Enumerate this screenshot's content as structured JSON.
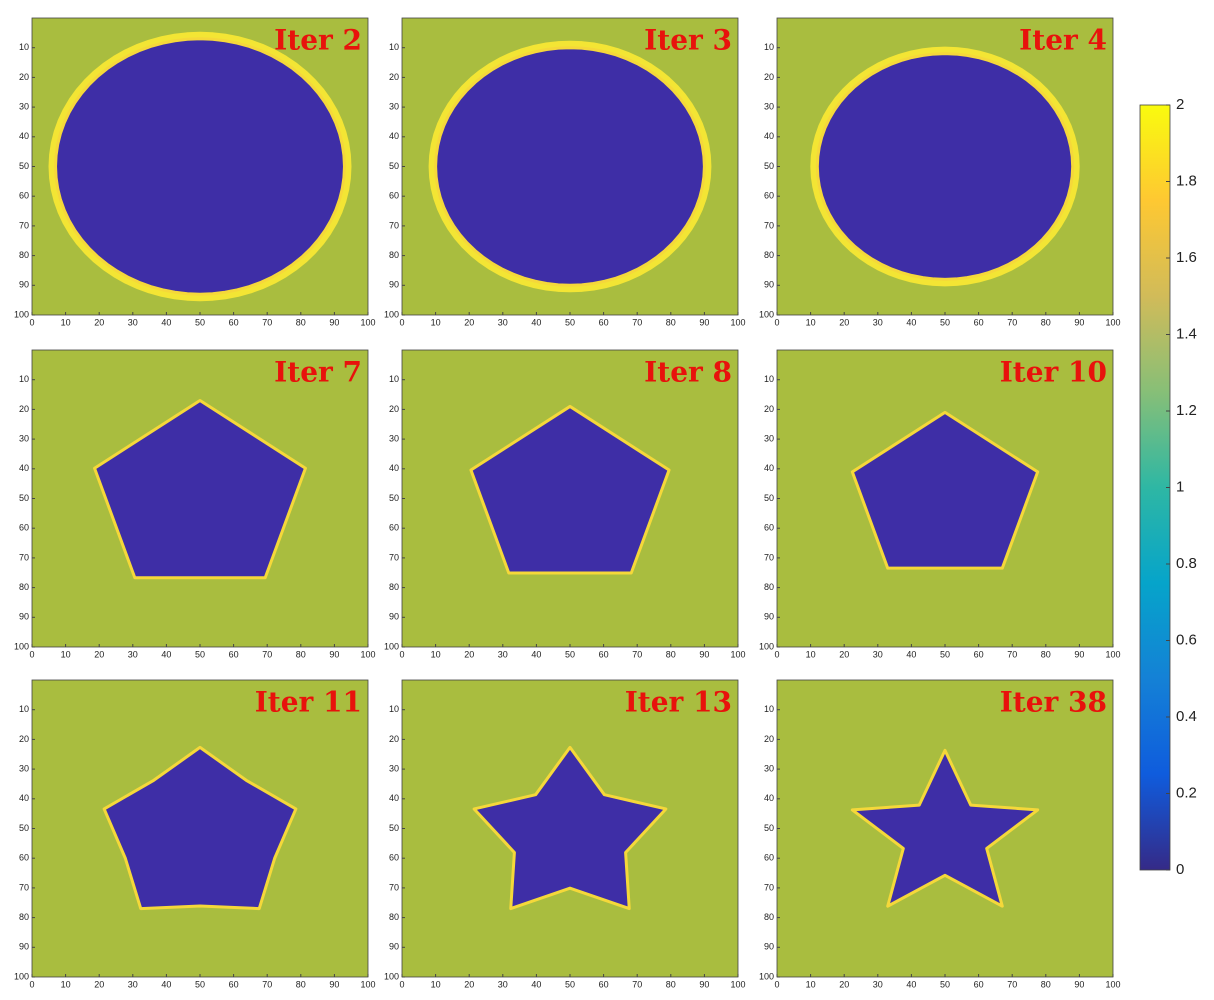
{
  "chart_data": [
    {
      "type": "heatmap",
      "title": "Iter 2",
      "xlim": [
        0,
        100
      ],
      "ylim": [
        0,
        100
      ],
      "y_reversed": true,
      "xticks": [
        0,
        10,
        20,
        30,
        40,
        50,
        60,
        70,
        80,
        90,
        100
      ],
      "yticks": [
        10,
        20,
        30,
        40,
        50,
        60,
        70,
        80,
        90,
        100
      ]
    },
    {
      "type": "heatmap",
      "title": "Iter 3",
      "xlim": [
        0,
        100
      ],
      "ylim": [
        0,
        100
      ],
      "y_reversed": true,
      "xticks": [
        0,
        10,
        20,
        30,
        40,
        50,
        60,
        70,
        80,
        90,
        100
      ],
      "yticks": [
        10,
        20,
        30,
        40,
        50,
        60,
        70,
        80,
        90,
        100
      ]
    },
    {
      "type": "heatmap",
      "title": "Iter 4",
      "xlim": [
        0,
        100
      ],
      "ylim": [
        0,
        100
      ],
      "y_reversed": true,
      "xticks": [
        0,
        10,
        20,
        30,
        40,
        50,
        60,
        70,
        80,
        90,
        100
      ],
      "yticks": [
        10,
        20,
        30,
        40,
        50,
        60,
        70,
        80,
        90,
        100
      ]
    },
    {
      "type": "heatmap",
      "title": "Iter 7",
      "xlim": [
        0,
        100
      ],
      "ylim": [
        0,
        100
      ],
      "y_reversed": true,
      "xticks": [
        0,
        10,
        20,
        30,
        40,
        50,
        60,
        70,
        80,
        90,
        100
      ],
      "yticks": [
        10,
        20,
        30,
        40,
        50,
        60,
        70,
        80,
        90,
        100
      ]
    },
    {
      "type": "heatmap",
      "title": "Iter 8",
      "xlim": [
        0,
        100
      ],
      "ylim": [
        0,
        100
      ],
      "y_reversed": true,
      "xticks": [
        0,
        10,
        20,
        30,
        40,
        50,
        60,
        70,
        80,
        90,
        100
      ],
      "yticks": [
        10,
        20,
        30,
        40,
        50,
        60,
        70,
        80,
        90,
        100
      ]
    },
    {
      "type": "heatmap",
      "title": "Iter 10",
      "xlim": [
        0,
        100
      ],
      "ylim": [
        0,
        100
      ],
      "y_reversed": true,
      "xticks": [
        0,
        10,
        20,
        30,
        40,
        50,
        60,
        70,
        80,
        90,
        100
      ],
      "yticks": [
        10,
        20,
        30,
        40,
        50,
        60,
        70,
        80,
        90,
        100
      ]
    },
    {
      "type": "heatmap",
      "title": "Iter 11",
      "xlim": [
        0,
        100
      ],
      "ylim": [
        0,
        100
      ],
      "y_reversed": true,
      "xticks": [
        0,
        10,
        20,
        30,
        40,
        50,
        60,
        70,
        80,
        90,
        100
      ],
      "yticks": [
        10,
        20,
        30,
        40,
        50,
        60,
        70,
        80,
        90,
        100
      ]
    },
    {
      "type": "heatmap",
      "title": "Iter 13",
      "xlim": [
        0,
        100
      ],
      "ylim": [
        0,
        100
      ],
      "y_reversed": true,
      "xticks": [
        0,
        10,
        20,
        30,
        40,
        50,
        60,
        70,
        80,
        90,
        100
      ],
      "yticks": [
        10,
        20,
        30,
        40,
        50,
        60,
        70,
        80,
        90,
        100
      ]
    },
    {
      "type": "heatmap",
      "title": "Iter 38",
      "xlim": [
        0,
        100
      ],
      "ylim": [
        0,
        100
      ],
      "y_reversed": true,
      "xticks": [
        0,
        10,
        20,
        30,
        40,
        50,
        60,
        70,
        80,
        90,
        100
      ],
      "yticks": [
        10,
        20,
        30,
        40,
        50,
        60,
        70,
        80,
        90,
        100
      ]
    },
    {
      "type": "colorbar",
      "colormap": "parula",
      "ylim": [
        0,
        2
      ],
      "yticks": [
        0,
        0.2,
        0.4,
        0.6,
        0.8,
        1,
        1.2,
        1.4,
        1.6,
        1.8,
        2
      ]
    }
  ]
}
